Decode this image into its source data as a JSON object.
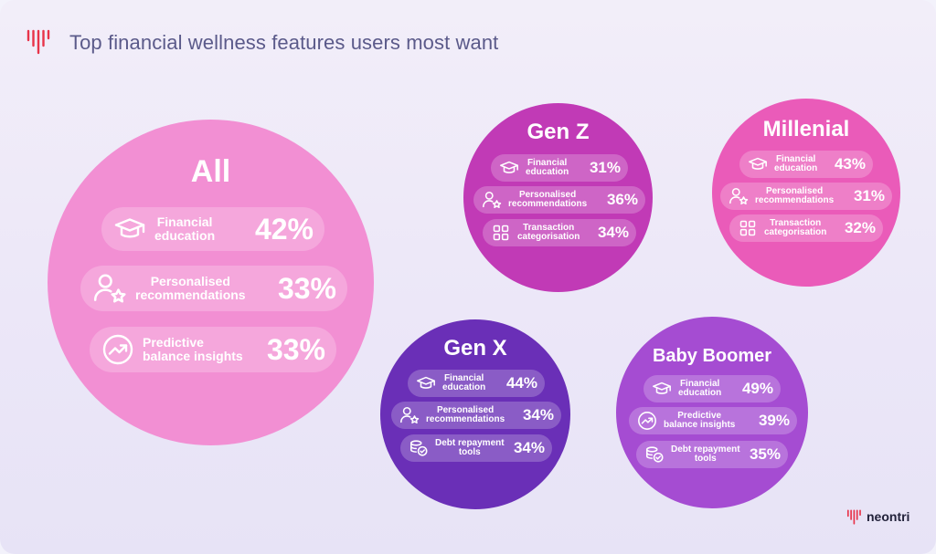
{
  "header": {
    "title": "Top financial wellness features users most want"
  },
  "brand": {
    "wordmark": "neontri",
    "accent_color": "#e8344a"
  },
  "segments": {
    "all": {
      "title": "All",
      "color": "#f28fd3",
      "items": [
        {
          "icon": "graduation-cap-icon",
          "label_line1": "Financial",
          "label_line2": "education",
          "value": "42%"
        },
        {
          "icon": "user-star-icon",
          "label_line1": "Personalised",
          "label_line2": "recommendations",
          "value": "33%"
        },
        {
          "icon": "trend-up-icon",
          "label_line1": "Predictive",
          "label_line2": "balance insights",
          "value": "33%"
        }
      ]
    },
    "genz": {
      "title": "Gen Z",
      "color": "#c13ab6",
      "items": [
        {
          "icon": "graduation-cap-icon",
          "label_line1": "Financial",
          "label_line2": "education",
          "value": "31%"
        },
        {
          "icon": "user-star-icon",
          "label_line1": "Personalised",
          "label_line2": "recommendations",
          "value": "36%"
        },
        {
          "icon": "grid-icon",
          "label_line1": "Transaction",
          "label_line2": "categorisation",
          "value": "34%"
        }
      ]
    },
    "millenial": {
      "title": "Millenial",
      "color": "#ea5bb9",
      "items": [
        {
          "icon": "graduation-cap-icon",
          "label_line1": "Financial",
          "label_line2": "education",
          "value": "43%"
        },
        {
          "icon": "user-star-icon",
          "label_line1": "Personalised",
          "label_line2": "recommendations",
          "value": "31%"
        },
        {
          "icon": "grid-icon",
          "label_line1": "Transaction",
          "label_line2": "categorisation",
          "value": "32%"
        }
      ]
    },
    "genx": {
      "title": "Gen X",
      "color": "#6a2fb7",
      "items": [
        {
          "icon": "graduation-cap-icon",
          "label_line1": "Financial",
          "label_line2": "education",
          "value": "44%"
        },
        {
          "icon": "user-star-icon",
          "label_line1": "Personalised",
          "label_line2": "recommendations",
          "value": "34%"
        },
        {
          "icon": "coins-check-icon",
          "label_line1": "Debt repayment",
          "label_line2": "tools",
          "value": "34%"
        }
      ]
    },
    "boomer": {
      "title": "Baby Boomer",
      "color": "#a54cd2",
      "items": [
        {
          "icon": "graduation-cap-icon",
          "label_line1": "Financial",
          "label_line2": "education",
          "value": "49%"
        },
        {
          "icon": "trend-up-icon",
          "label_line1": "Predictive",
          "label_line2": "balance insights",
          "value": "39%"
        },
        {
          "icon": "coins-check-icon",
          "label_line1": "Debt repayment",
          "label_line2": "tools",
          "value": "35%"
        }
      ]
    }
  }
}
